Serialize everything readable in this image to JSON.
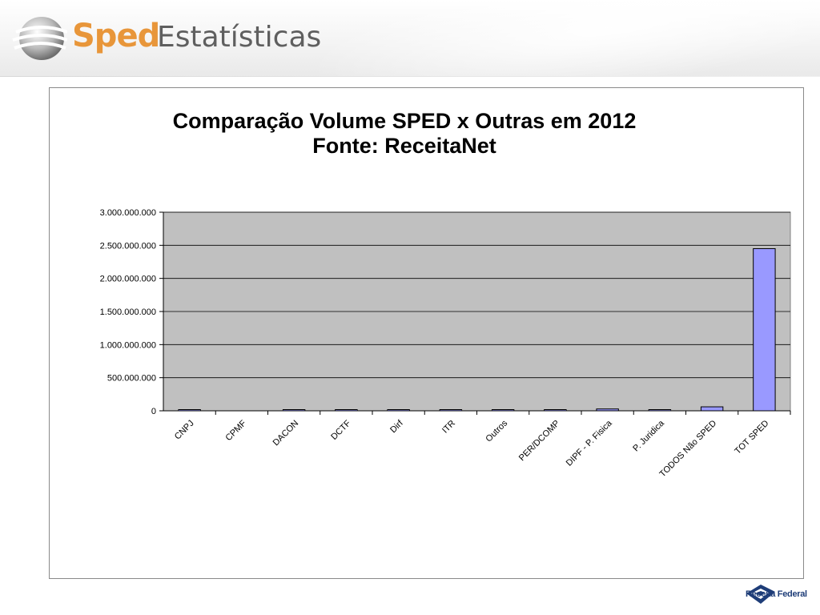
{
  "header": {
    "logo_text": "Sped",
    "title": "Estatísticas"
  },
  "footer": {
    "brand": "Receita Federal"
  },
  "chart_data": {
    "type": "bar",
    "title": "Comparação Volume SPED x Outras em 2012",
    "subtitle": "Fonte: ReceitaNet",
    "categories": [
      "CNPJ",
      "CPMF",
      "DACON",
      "DCTF",
      "Dirf",
      "ITR",
      "Outros",
      "PER/DCOMP",
      "DIPF - P. Fisica",
      "P. Juridica",
      "TODOS Não SPED",
      "TOT SPED"
    ],
    "values": [
      4000000,
      0,
      10000000,
      4000000,
      4000000,
      4000000,
      3000000,
      3000000,
      28000000,
      3000000,
      60000000,
      2450000000
    ],
    "ylim": [
      0,
      3000000000
    ],
    "yticks": [
      0,
      500000000,
      1000000000,
      1500000000,
      2000000000,
      2500000000,
      3000000000
    ],
    "ytick_labels": [
      "0",
      "500.000.000",
      "1.000.000.000",
      "1.500.000.000",
      "2.000.000.000",
      "2.500.000.000",
      "3.000.000.000"
    ],
    "grid": true,
    "plot_background": "#c0c0c0",
    "bar_color": "#9999ff",
    "bar_border": "#000000",
    "xlabel": "",
    "ylabel": ""
  }
}
